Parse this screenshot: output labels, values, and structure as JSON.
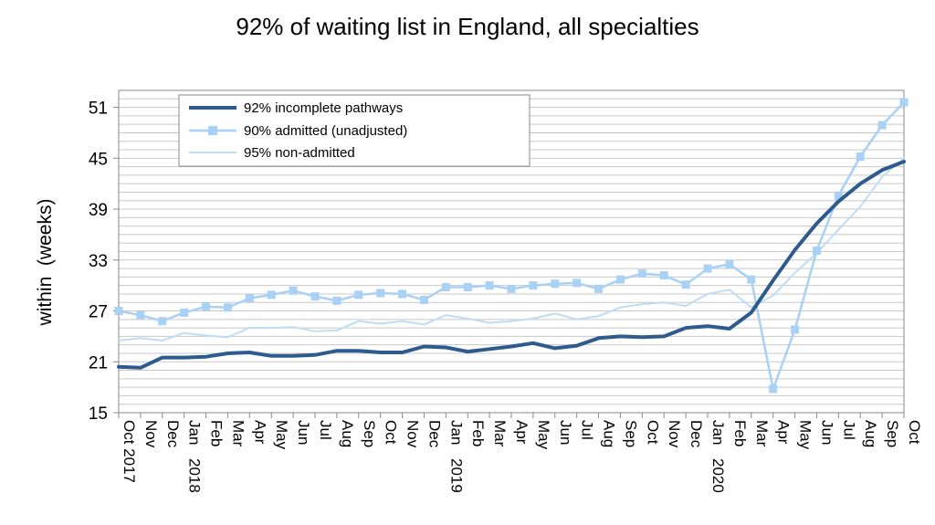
{
  "chart_data": {
    "type": "line",
    "title": "92% of waiting list in England, all specialties",
    "ylabel": "within  (weeks)",
    "xlabel": "",
    "ylim": [
      15,
      53
    ],
    "yticks": [
      15,
      21,
      27,
      33,
      39,
      45,
      51
    ],
    "grid": true,
    "legend_position": "top-left",
    "x": [
      "Oct",
      "Nov",
      "Dec",
      "Jan",
      "Feb",
      "Mar",
      "Apr",
      "May",
      "Jun",
      "Jul",
      "Aug",
      "Sep",
      "Oct",
      "Nov",
      "Dec",
      "Jan",
      "Feb",
      "Mar",
      "Apr",
      "May",
      "Jun",
      "Jul",
      "Aug",
      "Sep",
      "Oct",
      "Nov",
      "Dec",
      "Jan",
      "Feb",
      "Mar",
      "Apr",
      "May",
      "Jun",
      "Jul",
      "Aug",
      "Sep",
      "Oct"
    ],
    "year_labels": [
      {
        "index": 0,
        "label": "2017",
        "joined": true
      },
      {
        "index": 3,
        "label": "2018",
        "joined": false
      },
      {
        "index": 15,
        "label": "2019",
        "joined": false
      },
      {
        "index": 27,
        "label": "2020",
        "joined": false
      }
    ],
    "series": [
      {
        "name": "92% incomplete pathways",
        "color": "#2e5b8e",
        "width": 4,
        "marker": "none",
        "values": [
          20.4,
          20.3,
          21.5,
          21.5,
          21.6,
          22.0,
          22.1,
          21.7,
          21.7,
          21.8,
          22.3,
          22.3,
          22.1,
          22.1,
          22.8,
          22.7,
          22.2,
          22.5,
          22.8,
          23.2,
          22.6,
          22.9,
          23.8,
          24.0,
          23.9,
          24.0,
          25.0,
          25.2,
          24.9,
          26.8,
          30.6,
          34.2,
          37.3,
          39.9,
          42.0,
          43.6,
          44.6
        ]
      },
      {
        "name": "90% admitted (unadjusted)",
        "color": "#a9d0f5",
        "width": 2.5,
        "marker": "square",
        "values": [
          27.0,
          26.5,
          25.8,
          26.8,
          27.5,
          27.4,
          28.5,
          28.9,
          29.4,
          28.7,
          28.2,
          28.9,
          29.1,
          29.0,
          28.3,
          29.8,
          29.8,
          30.0,
          29.6,
          30.0,
          30.2,
          30.3,
          29.6,
          30.7,
          31.4,
          31.2,
          30.1,
          32.0,
          32.5,
          30.7,
          17.8,
          24.8,
          34.1,
          40.6,
          45.2,
          48.9,
          51.6
        ]
      },
      {
        "name": "95% non-admitted",
        "color": "#bfdcf5",
        "width": 2,
        "marker": "none",
        "values": [
          23.5,
          23.8,
          23.5,
          24.4,
          24.1,
          23.9,
          25.0,
          25.0,
          25.1,
          24.6,
          24.7,
          25.8,
          25.5,
          25.8,
          25.4,
          26.5,
          26.1,
          25.6,
          25.8,
          26.1,
          26.7,
          26.0,
          26.4,
          27.4,
          27.8,
          28.0,
          27.6,
          29.0,
          29.5,
          27.4,
          28.8,
          31.5,
          33.8,
          36.6,
          39.3,
          42.8,
          45.0
        ]
      }
    ]
  }
}
